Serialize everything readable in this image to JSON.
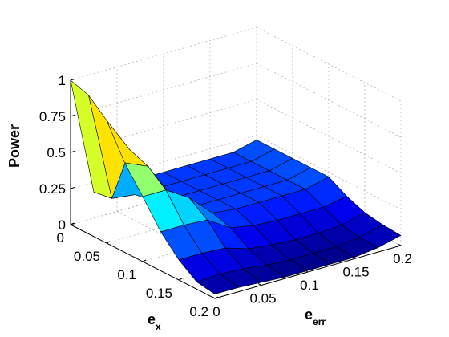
{
  "chart_data": {
    "type": "surface",
    "xlabel": "e",
    "xlabel_sub": "x",
    "ylabel": "e",
    "ylabel_sub": "err",
    "zlabel": "Power",
    "x_values": [
      0,
      0.025,
      0.05,
      0.075,
      0.1,
      0.125,
      0.15,
      0.175,
      0.2
    ],
    "y_values": [
      0,
      0.025,
      0.05,
      0.075,
      0.1,
      0.125,
      0.15,
      0.175,
      0.2
    ],
    "x_ticks": [
      "0",
      "0.05",
      "0.1",
      "0.15",
      "0.2"
    ],
    "y_ticks": [
      "0",
      "0.05",
      "0.1",
      "0.15",
      "0.2"
    ],
    "z_ticks": [
      "0",
      "0.25",
      "0.5",
      "0.75",
      "1"
    ],
    "xlim": [
      0,
      0.2
    ],
    "ylim": [
      0,
      0.2
    ],
    "zlim": [
      0,
      1
    ],
    "grid": true,
    "colormap": "jet",
    "z_matrix": [
      [
        1.0,
        0.18,
        0.18,
        0.18,
        0.18,
        0.18,
        0.18,
        0.18,
        0.22
      ],
      [
        0.96,
        0.2,
        0.18,
        0.18,
        0.18,
        0.18,
        0.18,
        0.18,
        0.22
      ],
      [
        0.85,
        0.6,
        0.2,
        0.18,
        0.18,
        0.18,
        0.18,
        0.18,
        0.22
      ],
      [
        0.62,
        0.55,
        0.3,
        0.18,
        0.18,
        0.18,
        0.18,
        0.18,
        0.22
      ],
      [
        0.45,
        0.45,
        0.35,
        0.2,
        0.18,
        0.18,
        0.18,
        0.18,
        0.22
      ],
      [
        0.27,
        0.27,
        0.26,
        0.16,
        0.13,
        0.12,
        0.12,
        0.12,
        0.15
      ],
      [
        0.14,
        0.14,
        0.13,
        0.08,
        0.06,
        0.05,
        0.05,
        0.06,
        0.1
      ],
      [
        0.05,
        0.06,
        0.05,
        0.03,
        0.02,
        0.02,
        0.02,
        0.04,
        0.08
      ],
      [
        0.03,
        0.03,
        0.02,
        0.01,
        0.01,
        0.01,
        0.01,
        0.03,
        0.07
      ]
    ]
  }
}
